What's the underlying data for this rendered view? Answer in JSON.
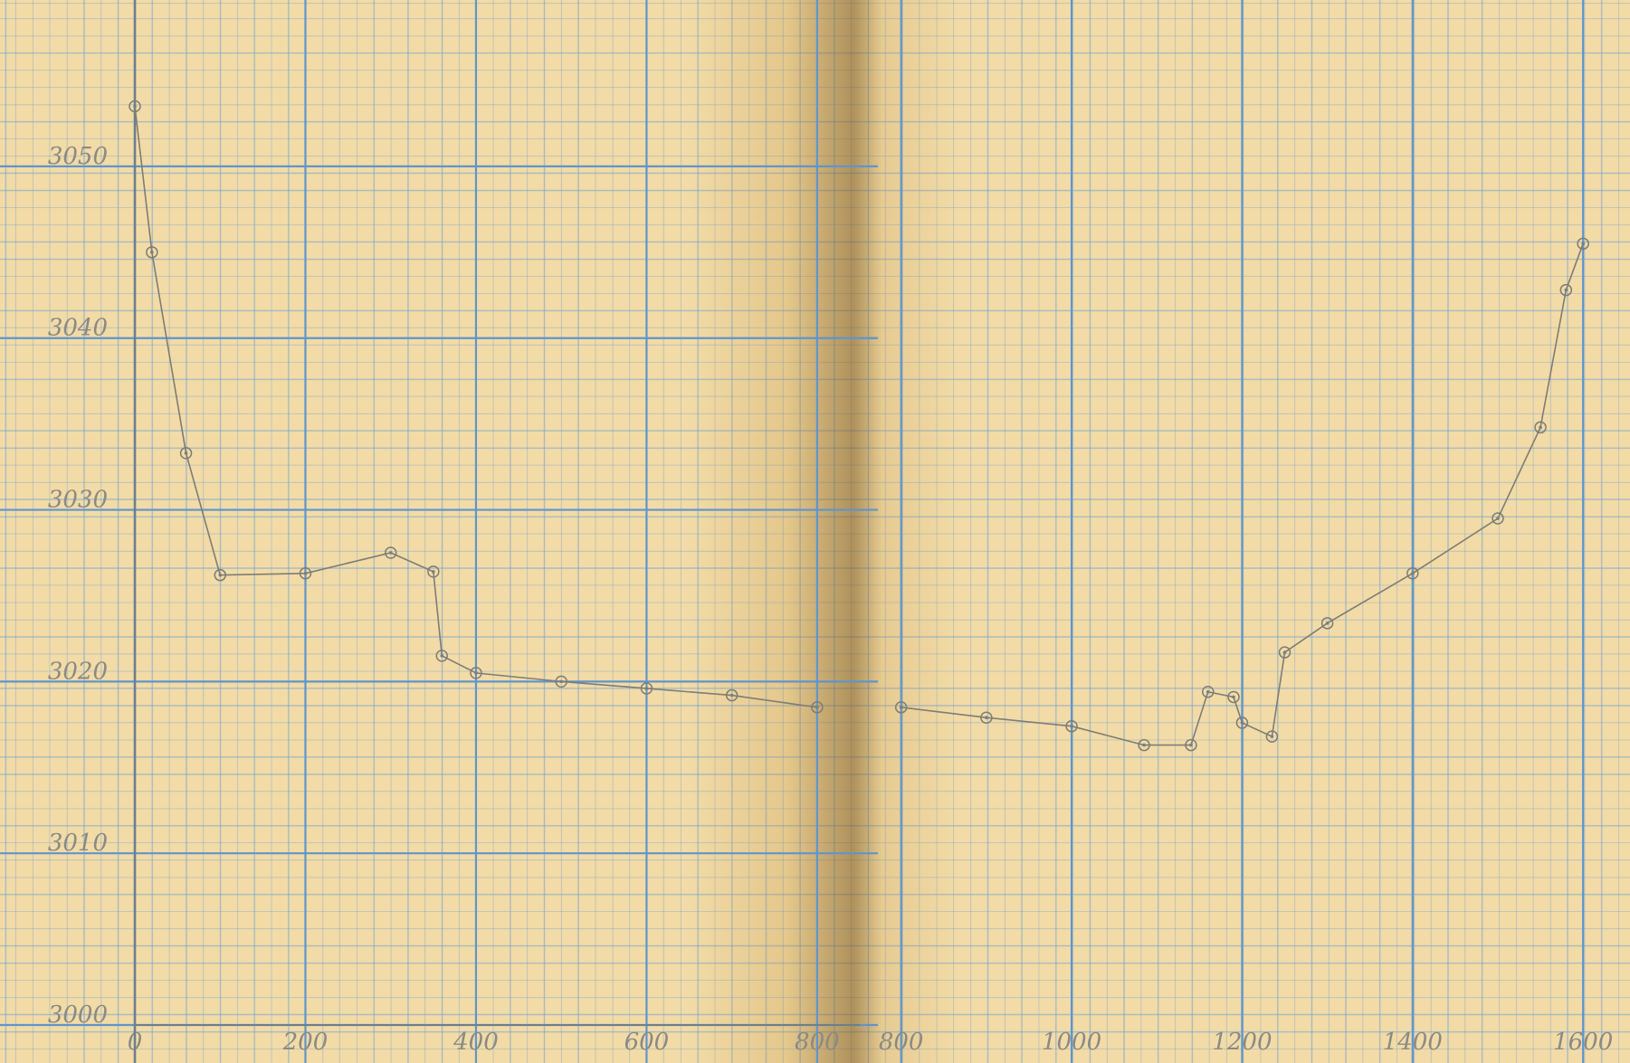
{
  "chart_data": [
    {
      "type": "line",
      "xlim": [
        0,
        850
      ],
      "ylim": [
        3000,
        3055
      ],
      "xticks": [
        0,
        200,
        400,
        600,
        800
      ],
      "yticks": [
        3000,
        3010,
        3020,
        3030,
        3040,
        3050
      ],
      "grid": true,
      "series": [
        {
          "color": "#7d7d78",
          "x": [
            0,
            20,
            60,
            100,
            200,
            300,
            350,
            360,
            400,
            500,
            600,
            700,
            800
          ],
          "values": [
            3053.5,
            3045.0,
            3033.3,
            3026.2,
            3026.3,
            3027.5,
            3026.4,
            3021.5,
            3020.5,
            3020.0,
            3019.6,
            3019.2,
            3018.5
          ]
        }
      ]
    },
    {
      "type": "line",
      "xlim": [
        760,
        1620
      ],
      "ylim": [
        3000,
        3055
      ],
      "xticks": [
        800,
        1000,
        1200,
        1400,
        1600
      ],
      "grid": true,
      "series": [
        {
          "color": "#7d7d78",
          "x": [
            800,
            900,
            1000,
            1085,
            1140,
            1160,
            1190,
            1200,
            1235,
            1250,
            1300,
            1400,
            1500,
            1550,
            1580,
            1600
          ],
          "values": [
            3018.5,
            3017.9,
            3017.4,
            3016.3,
            3016.3,
            3019.4,
            3019.1,
            3017.6,
            3016.8,
            3021.7,
            3023.4,
            3026.3,
            3029.5,
            3034.8,
            3042.8,
            3045.5
          ]
        }
      ]
    }
  ]
}
